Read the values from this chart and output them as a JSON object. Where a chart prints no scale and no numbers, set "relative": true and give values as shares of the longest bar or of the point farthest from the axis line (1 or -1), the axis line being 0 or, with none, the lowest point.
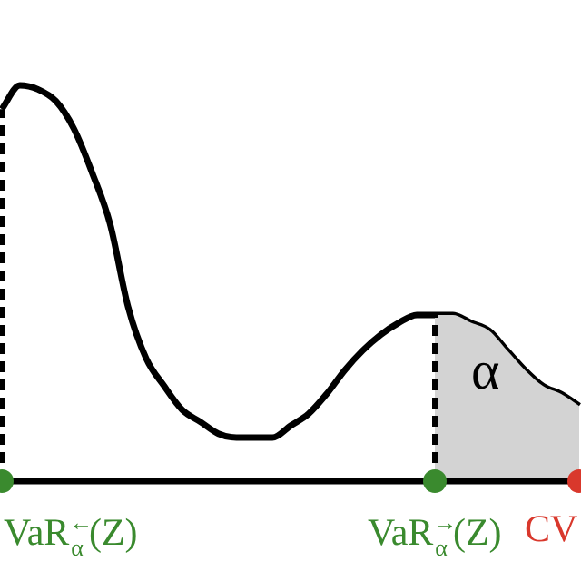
{
  "chart_data": {
    "type": "line",
    "relative": true,
    "categories": [
      null,
      null,
      null,
      null,
      null,
      null,
      null,
      null,
      null,
      null,
      null,
      null,
      null,
      null,
      null,
      null,
      null,
      null,
      null,
      null,
      null,
      null,
      null,
      null,
      null,
      null,
      null,
      null,
      null,
      null,
      null,
      null,
      null
    ],
    "series": [
      {
        "type": "area",
        "color": "#d3d3d3",
        "values": [
          null,
          null,
          null,
          null,
          null,
          null,
          null,
          null,
          null,
          null,
          null,
          null,
          null,
          null,
          null,
          null,
          null,
          null,
          null,
          null,
          null,
          null,
          null,
          null,
          0.42,
          0.42,
          0.4,
          0.38,
          0.33,
          0.28,
          0.24,
          0.22,
          0.19
        ]
      },
      {
        "color": "#000000",
        "values": [
          0.94,
          1.0,
          0.99,
          0.96,
          0.89,
          0.78,
          0.65,
          0.44,
          0.31,
          0.24,
          0.18,
          0.15,
          0.12,
          0.11,
          0.11,
          0.11,
          0.14,
          0.17,
          0.22,
          0.28,
          0.33,
          0.37,
          0.4,
          0.42,
          0.42,
          0.42,
          0.4,
          0.38,
          0.33,
          0.28,
          0.24,
          0.22,
          0.19
        ]
      }
    ],
    "annotations": [
      "VaR$^{←}$$_{α}$(Z)",
      "VaR$^{→}$$_{α}$(Z)",
      "CV",
      "α"
    ],
    "legend": false,
    "marker": "none",
    "line_style": "solid",
    "tick_labels": false
  }
}
